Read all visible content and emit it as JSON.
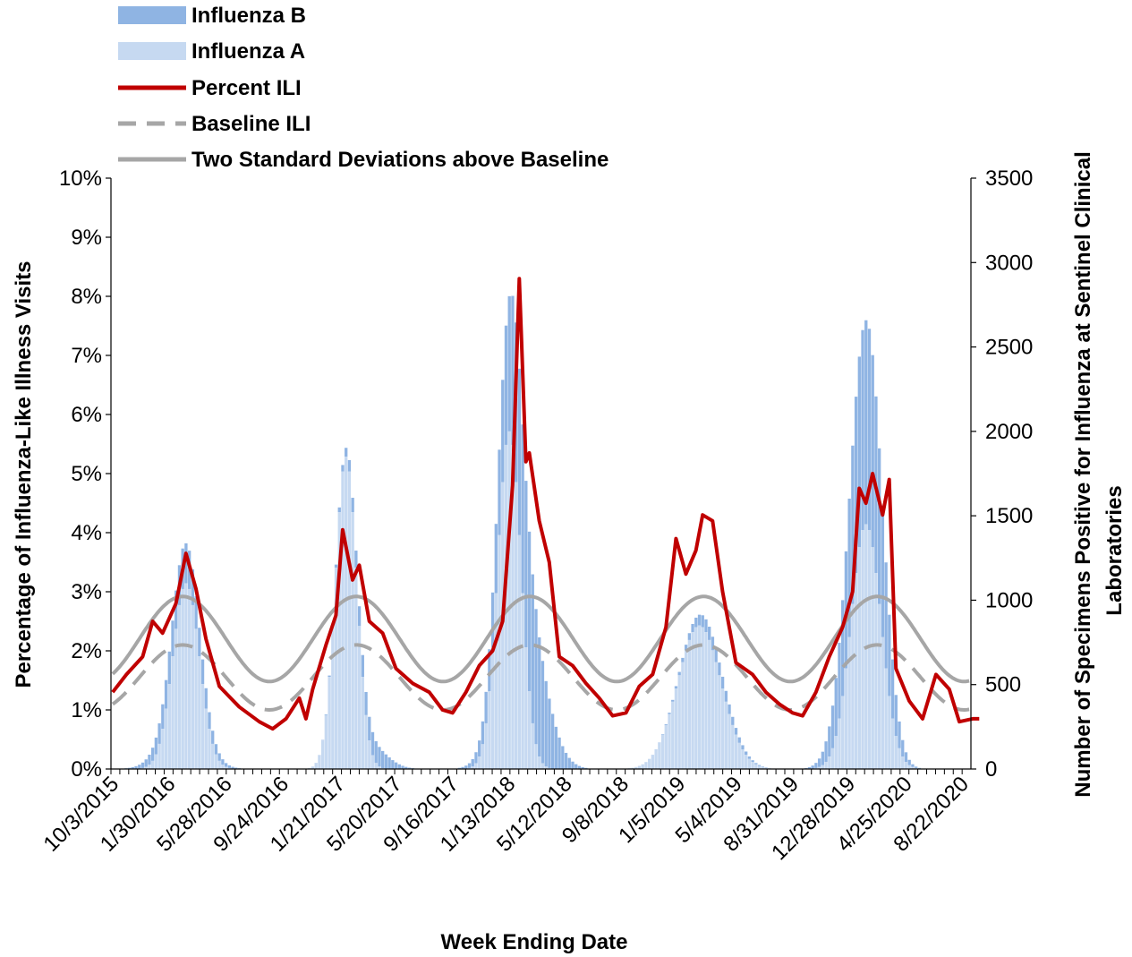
{
  "chart_data": {
    "type": "bar",
    "title": "",
    "xlabel": "Week Ending Date",
    "ylabel_left": "Percentage of Influenza-Like Illness Visits",
    "ylabel_right_lines": [
      "Number of Specimens Positive for Influenza at Sentinel Clinical",
      "Laboratories"
    ],
    "ylim_left": [
      0,
      10
    ],
    "ylim_right": [
      0,
      3500
    ],
    "left_ticks": [
      "0%",
      "1%",
      "2%",
      "3%",
      "4%",
      "5%",
      "6%",
      "7%",
      "8%",
      "9%",
      "10%"
    ],
    "right_ticks": [
      "0",
      "500",
      "1000",
      "1500",
      "2000",
      "2500",
      "3000",
      "3500"
    ],
    "x_tick_labels": [
      "10/3/2015",
      "1/30/2016",
      "5/28/2016",
      "9/24/2016",
      "1/21/2017",
      "5/20/2017",
      "9/16/2017",
      "1/13/2018",
      "5/12/2018",
      "9/8/2018",
      "1/5/2019",
      "5/4/2019",
      "8/31/2019",
      "12/28/2019",
      "4/25/2020",
      "8/22/2020"
    ],
    "legend_position": "top-left",
    "grid": false,
    "colors": {
      "influenza_b": "#8FB4E3",
      "influenza_a": "#C6D9F1",
      "percent_ili": "#C00000",
      "baseline": "#A6A6A6",
      "two_sd": "#A6A6A6"
    },
    "week_start": "10/3/2015",
    "weeks_approx": 258,
    "series": [
      {
        "name": "Influenza B",
        "kind": "stacked-bar",
        "axis": "right",
        "peaks": [
          {
            "date": "2/27/2016",
            "value": 240,
            "width_weeks": 6
          },
          {
            "date": "3/25/2017",
            "value": 140,
            "width_weeks": 5
          },
          {
            "date": "2/10/2018",
            "value": 1000,
            "width_weeks": 6
          },
          {
            "date": "3/16/2019",
            "value": 80,
            "width_weeks": 6
          },
          {
            "date": "1/18/2020",
            "value": 900,
            "width_weeks": 5
          },
          {
            "date": "2/22/2020",
            "value": 500,
            "width_weeks": 4
          }
        ]
      },
      {
        "name": "Influenza A",
        "kind": "stacked-bar",
        "axis": "right",
        "peaks": [
          {
            "date": "3/5/2016",
            "value": 1100,
            "width_weeks": 4
          },
          {
            "date": "2/4/2017",
            "value": 1850,
            "width_weeks": 3.2
          },
          {
            "date": "1/13/2018",
            "value": 2000,
            "width_weeks": 3.5
          },
          {
            "date": "2/16/2019",
            "value": 850,
            "width_weeks": 6.5
          },
          {
            "date": "2/1/2020",
            "value": 1450,
            "width_weeks": 4.5
          }
        ]
      },
      {
        "name": "Percent ILI",
        "kind": "line",
        "axis": "left",
        "points": [
          [
            "10/3/2015",
            1.3
          ],
          [
            "11/1/2015",
            1.6
          ],
          [
            "12/5/2015",
            1.9
          ],
          [
            "12/26/2015",
            2.5
          ],
          [
            "1/16/2016",
            2.3
          ],
          [
            "2/13/2016",
            2.8
          ],
          [
            "3/5/2016",
            3.65
          ],
          [
            "3/26/2016",
            3.05
          ],
          [
            "4/16/2016",
            2.2
          ],
          [
            "5/14/2016",
            1.4
          ],
          [
            "6/25/2016",
            1.05
          ],
          [
            "8/6/2016",
            0.8
          ],
          [
            "9/3/2016",
            0.68
          ],
          [
            "10/1/2016",
            0.85
          ],
          [
            "10/29/2016",
            1.2
          ],
          [
            "11/12/2016",
            0.85
          ],
          [
            "11/26/2016",
            1.35
          ],
          [
            "12/24/2016",
            2.1
          ],
          [
            "1/14/2017",
            2.6
          ],
          [
            "1/28/2017",
            4.05
          ],
          [
            "2/18/2017",
            3.2
          ],
          [
            "3/4/2017",
            3.45
          ],
          [
            "3/25/2017",
            2.5
          ],
          [
            "4/22/2017",
            2.3
          ],
          [
            "5/20/2017",
            1.7
          ],
          [
            "6/24/2017",
            1.45
          ],
          [
            "7/29/2017",
            1.3
          ],
          [
            "8/26/2017",
            1.0
          ],
          [
            "9/16/2017",
            0.95
          ],
          [
            "10/14/2017",
            1.3
          ],
          [
            "11/11/2017",
            1.75
          ],
          [
            "12/9/2017",
            2.0
          ],
          [
            "12/30/2017",
            2.5
          ],
          [
            "1/20/2018",
            4.8
          ],
          [
            "2/3/2018",
            8.3
          ],
          [
            "2/17/2018",
            5.2
          ],
          [
            "2/24/2018",
            5.35
          ],
          [
            "3/17/2018",
            4.2
          ],
          [
            "4/7/2018",
            3.5
          ],
          [
            "4/28/2018",
            1.9
          ],
          [
            "5/26/2018",
            1.75
          ],
          [
            "6/23/2018",
            1.45
          ],
          [
            "7/21/2018",
            1.2
          ],
          [
            "8/18/2018",
            0.9
          ],
          [
            "9/15/2018",
            0.95
          ],
          [
            "10/13/2018",
            1.4
          ],
          [
            "11/10/2018",
            1.6
          ],
          [
            "12/8/2018",
            2.4
          ],
          [
            "12/29/2018",
            3.9
          ],
          [
            "1/19/2019",
            3.3
          ],
          [
            "2/9/2019",
            3.7
          ],
          [
            "2/23/2019",
            4.3
          ],
          [
            "3/16/2019",
            4.2
          ],
          [
            "4/6/2019",
            3.0
          ],
          [
            "5/4/2019",
            1.8
          ],
          [
            "6/8/2019",
            1.6
          ],
          [
            "7/6/2019",
            1.3
          ],
          [
            "8/3/2019",
            1.1
          ],
          [
            "8/31/2019",
            0.95
          ],
          [
            "9/21/2019",
            0.9
          ],
          [
            "10/19/2019",
            1.3
          ],
          [
            "11/16/2019",
            1.9
          ],
          [
            "12/14/2019",
            2.4
          ],
          [
            "1/4/2020",
            3.0
          ],
          [
            "1/18/2020",
            4.75
          ],
          [
            "2/1/2020",
            4.5
          ],
          [
            "2/15/2020",
            5.0
          ],
          [
            "3/7/2020",
            4.3
          ],
          [
            "3/21/2020",
            4.9
          ],
          [
            "4/4/2020",
            1.7
          ],
          [
            "5/2/2020",
            1.15
          ],
          [
            "5/30/2020",
            0.85
          ],
          [
            "6/27/2020",
            1.6
          ],
          [
            "7/25/2020",
            1.35
          ],
          [
            "8/15/2020",
            0.8
          ],
          [
            "9/12/2020",
            0.85
          ],
          [
            "9/26/2020",
            0.85
          ]
        ]
      },
      {
        "name": "Baseline ILI",
        "kind": "line",
        "axis": "left",
        "dash": true,
        "model": "seasonal",
        "mean": 1.55,
        "amplitude": 0.55,
        "period_weeks": 52.1,
        "peak_date": "2/27/2016"
      },
      {
        "name": "Two Standard Deviations above Baseline",
        "kind": "line",
        "axis": "left",
        "model": "seasonal",
        "mean": 2.2,
        "amplitude": 0.72,
        "period_weeks": 52.1,
        "peak_date": "2/27/2016"
      }
    ]
  }
}
